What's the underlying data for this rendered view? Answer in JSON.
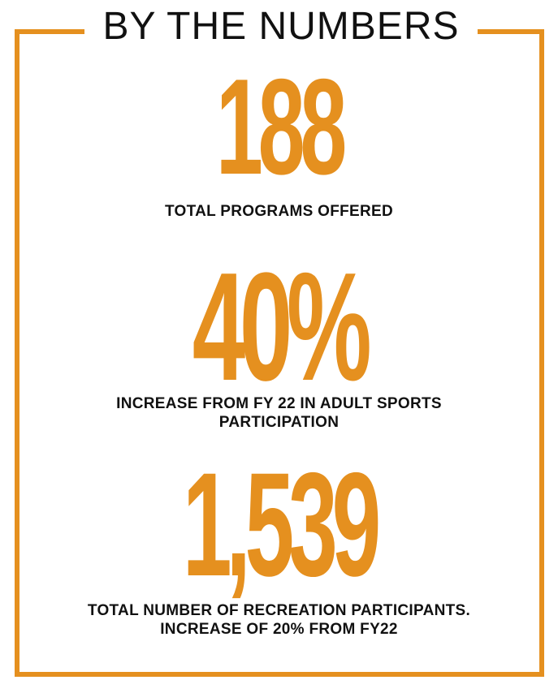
{
  "title": "BY THE NUMBERS",
  "colors": {
    "accent": "#E5901F",
    "text": "#111111",
    "background": "#ffffff"
  },
  "stats": [
    {
      "value": "188",
      "caption_lines": [
        "TOTAL PROGRAMS OFFERED"
      ]
    },
    {
      "value": "40%",
      "caption_lines": [
        "INCREASE FROM FY 22 IN ADULT SPORTS",
        "PARTICIPATION"
      ]
    },
    {
      "value": "1,539",
      "caption_lines": [
        "TOTAL NUMBER OF RECREATION PARTICIPANTS.",
        "INCREASE OF 20% FROM FY22"
      ]
    }
  ]
}
